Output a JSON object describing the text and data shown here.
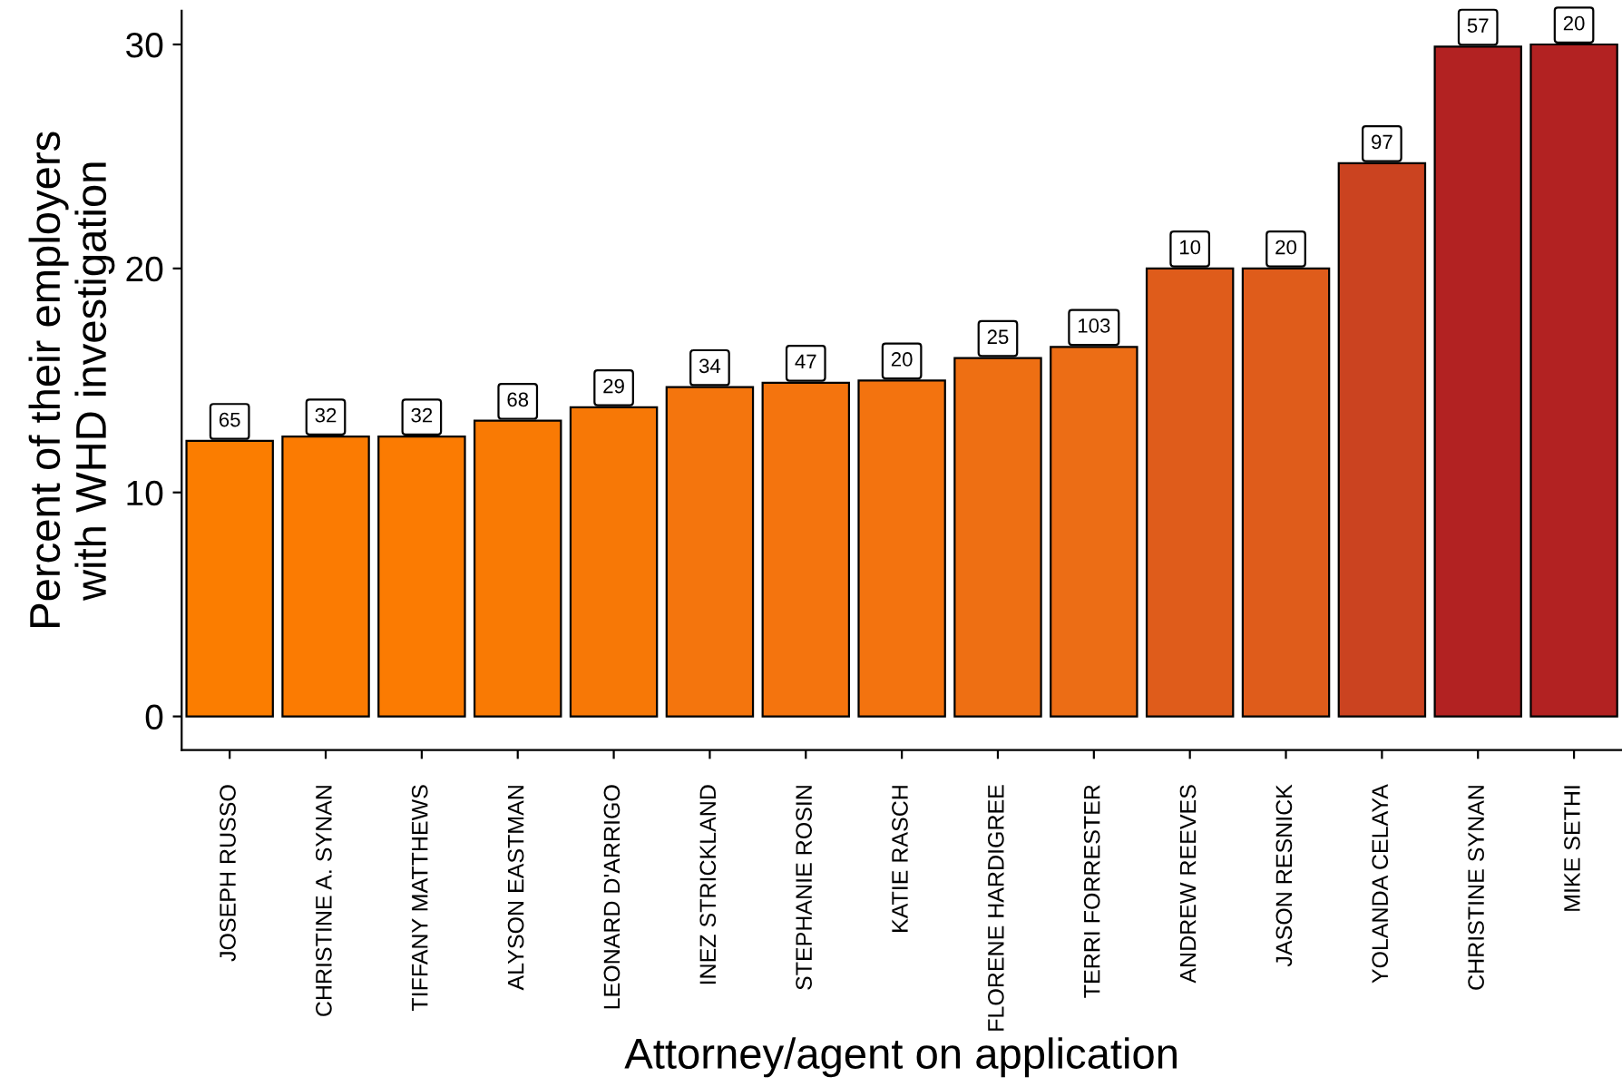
{
  "chart_data": {
    "type": "bar",
    "xlabel": "Attorney/agent on application",
    "ylabel": "Percent of their employers\nwith WHD investigation",
    "categories": [
      "JOSEPH RUSSO",
      "CHRISTINE A. SYNAN",
      "TIFFANY MATTHEWS",
      "ALYSON EASTMAN",
      "LEONARD D'ARRIGO",
      "INEZ STRICKLAND",
      "STEPHANIE ROSIN",
      "KATIE RASCH",
      "FLORENE HARDIGREE",
      "TERRI FORRESTER",
      "ANDREW REEVES",
      "JASON RESNICK",
      "YOLANDA CELAYA",
      "CHRISTINE SYNAN",
      "MIKE SETHI"
    ],
    "values": [
      12.3,
      12.5,
      12.5,
      13.2,
      13.8,
      14.7,
      14.9,
      15.0,
      16.0,
      16.5,
      20.0,
      20.0,
      24.7,
      29.9,
      30.0
    ],
    "annotations": [
      {
        "text": "65",
        "x": "JOSEPH RUSSO",
        "y": 12.3
      },
      {
        "text": "32",
        "x": "CHRISTINE A. SYNAN",
        "y": 12.5
      },
      {
        "text": "32",
        "x": "TIFFANY MATTHEWS",
        "y": 12.5
      },
      {
        "text": "68",
        "x": "ALYSON EASTMAN",
        "y": 13.2
      },
      {
        "text": "29",
        "x": "LEONARD D'ARRIGO",
        "y": 13.8
      },
      {
        "text": "34",
        "x": "INEZ STRICKLAND",
        "y": 14.7
      },
      {
        "text": "47",
        "x": "STEPHANIE ROSIN",
        "y": 14.9
      },
      {
        "text": "20",
        "x": "KATIE RASCH",
        "y": 15.0
      },
      {
        "text": "25",
        "x": "FLORENE HARDIGREE",
        "y": 16.0
      },
      {
        "text": "103",
        "x": "TERRI FORRESTER",
        "y": 16.5
      },
      {
        "text": "10",
        "x": "ANDREW REEVES",
        "y": 20.0
      },
      {
        "text": "20",
        "x": "JASON RESNICK",
        "y": 20.0
      },
      {
        "text": "97",
        "x": "YOLANDA CELAYA",
        "y": 24.7
      },
      {
        "text": "57",
        "x": "CHRISTINE SYNAN",
        "y": 29.9
      },
      {
        "text": "20",
        "x": "MIKE SETHI",
        "y": 30.0
      }
    ],
    "colors": [
      "#fb7d00",
      "#fb7b02",
      "#fb7b02",
      "#f97a04",
      "#f77806",
      "#f4750d",
      "#f4740e",
      "#f3730f",
      "#ee6f13",
      "#ec6d15",
      "#df5c1b",
      "#df5c1b",
      "#cb4320",
      "#b22222",
      "#b22222"
    ],
    "ylim": [
      -1.5,
      31.5
    ],
    "yticks": [
      0,
      10,
      20,
      30
    ],
    "grid": false,
    "legend": false
  }
}
